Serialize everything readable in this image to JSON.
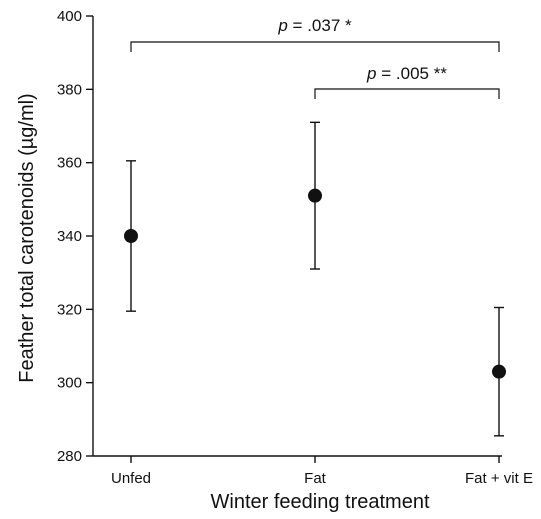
{
  "chart_data": {
    "type": "scatter",
    "xlabel": "Winter feeding treatment",
    "ylabel": "Feather total carotenoids (µg/ml)",
    "ylim": [
      280,
      400
    ],
    "yticks": [
      "280",
      "300",
      "320",
      "340",
      "360",
      "380",
      "400"
    ],
    "categories": [
      "Unfed",
      "Fat",
      "Fat + vit E"
    ],
    "points": [
      {
        "category": "Unfed",
        "mean": 340,
        "lower": 319.5,
        "upper": 360.5
      },
      {
        "category": "Fat",
        "mean": 351,
        "lower": 331,
        "upper": 371
      },
      {
        "category": "Fat + vit E",
        "mean": 303,
        "lower": 285.5,
        "upper": 320.5
      }
    ],
    "grid": false,
    "significance": [
      {
        "from": "Unfed",
        "to": "Fat + vit E",
        "p_label": "p",
        "text": " = .037 *"
      },
      {
        "from": "Fat",
        "to": "Fat + vit E",
        "p_label": "p",
        "text": " = .005 **"
      }
    ]
  }
}
